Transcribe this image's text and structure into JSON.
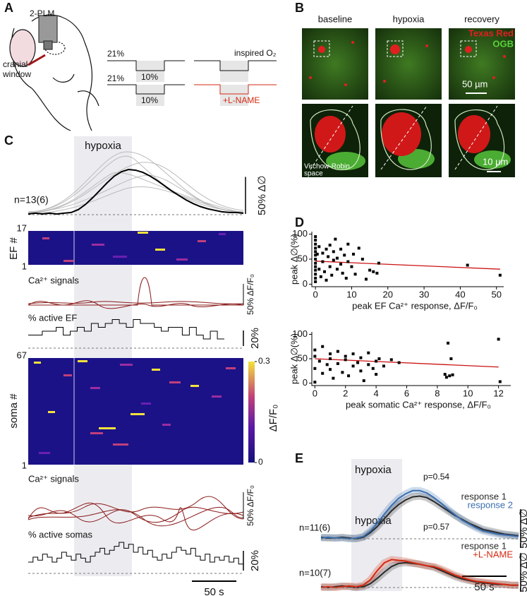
{
  "labels": {
    "A": "A",
    "B": "B",
    "C": "C",
    "D": "D",
    "E": "E",
    "a_2plm": "2-PLM",
    "a_cranial": "cranial",
    "a_window": "window",
    "a_21_1": "21%",
    "a_10_1": "10%",
    "a_21_2": "21%",
    "a_10_2": "10%",
    "a_inspired": "inspired O₂",
    "a_lname": "+L-NAME",
    "b_baseline": "baseline",
    "b_hypoxia": "hypoxia",
    "b_recovery": "recovery",
    "b_texas": "Texas Red",
    "b_ogb": "OGB",
    "b_50um": "50 µm",
    "b_10um": "10 µm",
    "b_vr1": "Virchow-Robin",
    "b_vr2": "space",
    "c_hypoxia": "hypoxia",
    "c_ef": "EF #",
    "c_ca1": "Ca²⁺ signals",
    "c_pct_ef": "% active EF",
    "c_soma": "soma #",
    "c_ca2": "Ca²⁺ signals",
    "c_pct_soma": "% active somas",
    "c_ca_scale1": "50% ΔF/F₀",
    "c_ca_scale2": "50% ΔF/F₀",
    "ef_rows": [
      1,
      17
    ],
    "soma_rows": [
      1,
      67
    ],
    "colorbar": {
      "ticks": [
        0,
        0.3
      ],
      "label": "ΔF/F₀"
    },
    "c_time": {
      "value": 50,
      "label": "50 s"
    },
    "e_hypoxia1": "hypoxia",
    "e_hypoxia2": "hypoxia",
    "e_time": {
      "value": 50,
      "label": "50 s"
    }
  },
  "chart_data": [
    {
      "type": "line",
      "text": "n=13(6)",
      "color": "#000000",
      "scale_bar": {
        "value": 50,
        "label": "50% Δ∅"
      },
      "values": [
        0,
        1,
        0,
        1,
        0,
        1,
        2,
        6,
        13,
        22,
        32,
        42,
        51,
        57,
        60,
        59,
        56,
        51,
        45,
        38,
        31,
        25,
        19,
        14,
        10,
        7,
        5,
        3,
        2,
        2,
        1
      ]
    },
    {
      "type": "step",
      "color": "#000000",
      "scale_bar": {
        "value": 20,
        "label": "20%"
      },
      "values": [
        15,
        15,
        20,
        20,
        25,
        15,
        20,
        25,
        20,
        30,
        25,
        30,
        35,
        30,
        25,
        35,
        30,
        30,
        25,
        20,
        25,
        25,
        15,
        25,
        15,
        10,
        20,
        10
      ]
    },
    {
      "type": "step",
      "color": "#000000",
      "scale_bar": {
        "value": 20,
        "label": "20%"
      },
      "values": [
        10,
        15,
        12,
        18,
        15,
        10,
        14,
        20,
        16,
        12,
        18,
        14,
        10,
        16,
        20,
        24,
        18,
        22,
        26,
        30,
        24,
        28,
        20,
        25,
        18,
        22,
        15,
        12,
        18,
        14,
        20,
        25,
        22,
        18,
        24,
        16,
        12,
        18,
        10,
        15,
        12,
        16,
        10,
        14,
        8
      ]
    },
    {
      "type": "scatter",
      "x_label": "peak EF Ca²⁺ response, ΔF/F₀",
      "y_label": "peak Δ∅(%)",
      "color": "#000000",
      "xlim": [
        -1,
        52
      ],
      "xticks": [
        0,
        10,
        20,
        30,
        40,
        50
      ],
      "ylim": [
        -5,
        105
      ],
      "yticks": [
        0,
        50,
        100
      ],
      "x": [
        0,
        0,
        0,
        0,
        0,
        0,
        0,
        0,
        0,
        0,
        0,
        0,
        0,
        0.5,
        1,
        1,
        1.5,
        2,
        2,
        2.5,
        3,
        3,
        3.5,
        4,
        4,
        4.5,
        5,
        5,
        5.5,
        6,
        6,
        7,
        7,
        7.5,
        8,
        8.5,
        9,
        9,
        10,
        10.5,
        11,
        12,
        13,
        14,
        15,
        16,
        17,
        17.5,
        42,
        51
      ],
      "values": [
        5,
        12,
        20,
        28,
        35,
        42,
        50,
        58,
        65,
        72,
        80,
        88,
        95,
        60,
        30,
        75,
        15,
        45,
        62,
        25,
        70,
        8,
        55,
        35,
        78,
        18,
        48,
        65,
        90,
        30,
        52,
        40,
        70,
        22,
        58,
        12,
        45,
        80,
        35,
        60,
        20,
        72,
        50,
        10,
        28,
        25,
        22,
        42,
        38,
        18
      ],
      "fit_line": {
        "x": [
          0,
          51
        ],
        "values": [
          46,
          30
        ],
        "color": "#cc1111"
      }
    },
    {
      "type": "scatter",
      "x_label": "peak somatic Ca²⁺ response, ΔF/F₀",
      "y_label": "peak Δ∅(%)",
      "color": "#000000",
      "xlim": [
        -0.2,
        12.8
      ],
      "xticks": [
        0,
        2,
        4,
        6,
        8,
        10,
        12
      ],
      "ylim": [
        -5,
        105
      ],
      "yticks": [
        0,
        50,
        100
      ],
      "x": [
        0,
        0,
        0,
        0,
        0.3,
        0.5,
        0.5,
        0.8,
        1,
        1,
        1,
        1.2,
        1.5,
        1.5,
        1.8,
        2,
        2,
        2.2,
        2.5,
        2.5,
        2.8,
        3,
        3,
        3.2,
        3.5,
        3.5,
        3.8,
        4,
        4,
        4.2,
        4.5,
        5,
        5.5,
        8.5,
        8.6,
        8.7,
        8.8,
        8.9,
        9,
        12,
        12.1
      ],
      "values": [
        2,
        30,
        55,
        68,
        45,
        20,
        75,
        38,
        50,
        60,
        28,
        10,
        65,
        40,
        22,
        55,
        48,
        15,
        35,
        60,
        42,
        25,
        52,
        5,
        38,
        62,
        30,
        45,
        18,
        50,
        35,
        48,
        42,
        18,
        12,
        82,
        15,
        50,
        17,
        90,
        3
      ],
      "fit_line": {
        "x": [
          0,
          12
        ],
        "values": [
          50,
          33
        ],
        "color": "#cc1111"
      }
    },
    {
      "type": "line",
      "text": "n=11(6)",
      "p_text": "p=0.54",
      "scale_bar": {
        "value": 50,
        "label": "50% Δ∅"
      },
      "series": [
        {
          "name": "response 1",
          "color": "#2b2b2b",
          "values": [
            2,
            1,
            1,
            2,
            1,
            0,
            2,
            8,
            16,
            26,
            36,
            44,
            50,
            54,
            55,
            53,
            48,
            42,
            36,
            30,
            25,
            20,
            16,
            12,
            10,
            8,
            6,
            5,
            4
          ]
        },
        {
          "name": "response 2",
          "color": "#3a6fb0",
          "values": [
            1,
            2,
            1,
            1,
            0,
            1,
            3,
            10,
            20,
            32,
            43,
            52,
            58,
            62,
            62,
            59,
            53,
            46,
            38,
            31,
            24,
            19,
            14,
            10,
            8,
            6,
            5,
            4,
            3
          ]
        }
      ]
    },
    {
      "type": "line",
      "text": "n=10(7)",
      "p_text": "p=0.57",
      "scale_bar": {
        "value": 50,
        "label": "50% Δ∅"
      },
      "series": [
        {
          "name": "response 1",
          "color": "#2b2b2b",
          "values": [
            1,
            0,
            1,
            2,
            1,
            0,
            1,
            5,
            12,
            20,
            27,
            31,
            32,
            31,
            30,
            28,
            26,
            22,
            18,
            14,
            11,
            9,
            7,
            6,
            5,
            4,
            4,
            3,
            3
          ]
        },
        {
          "name": "+L-NAME",
          "color": "#d42a10",
          "values": [
            0,
            1,
            0,
            1,
            2,
            1,
            3,
            10,
            22,
            32,
            36,
            35,
            34,
            32,
            30,
            28,
            27,
            24,
            20,
            16,
            13,
            10,
            8,
            7,
            6,
            5,
            4,
            3,
            3
          ]
        }
      ]
    }
  ]
}
